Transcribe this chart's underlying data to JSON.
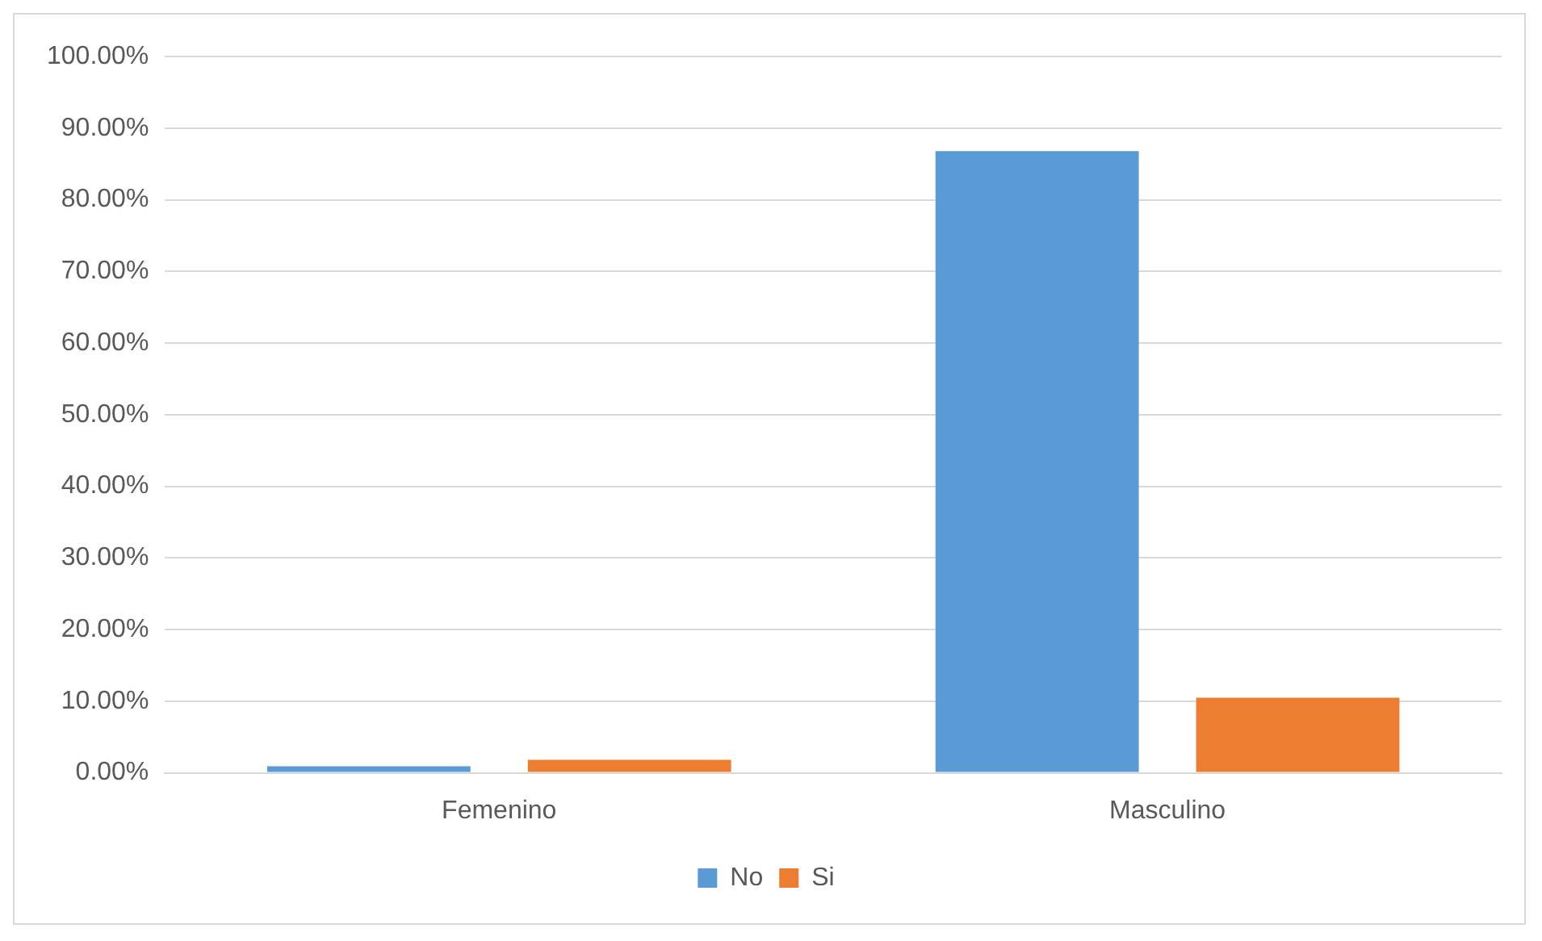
{
  "chart_data": {
    "type": "bar",
    "categories": [
      "Femenino",
      "Masculino"
    ],
    "series": [
      {
        "name": "No",
        "color": "#5b9bd5",
        "values": [
          0.9,
          86.8
        ]
      },
      {
        "name": "Si",
        "color": "#ed7d31",
        "values": [
          1.8,
          10.5
        ]
      }
    ],
    "ylim": [
      0,
      100
    ],
    "yticks": [
      {
        "value": 0,
        "label": "0.00%"
      },
      {
        "value": 10,
        "label": "10.00%"
      },
      {
        "value": 20,
        "label": "20.00%"
      },
      {
        "value": 30,
        "label": "30.00%"
      },
      {
        "value": 40,
        "label": "40.00%"
      },
      {
        "value": 50,
        "label": "50.00%"
      },
      {
        "value": 60,
        "label": "60.00%"
      },
      {
        "value": 70,
        "label": "70.00%"
      },
      {
        "value": 80,
        "label": "80.00%"
      },
      {
        "value": 90,
        "label": "90.00%"
      },
      {
        "value": 100,
        "label": "100.00%"
      }
    ],
    "grid": "y",
    "legend": "bottom"
  }
}
